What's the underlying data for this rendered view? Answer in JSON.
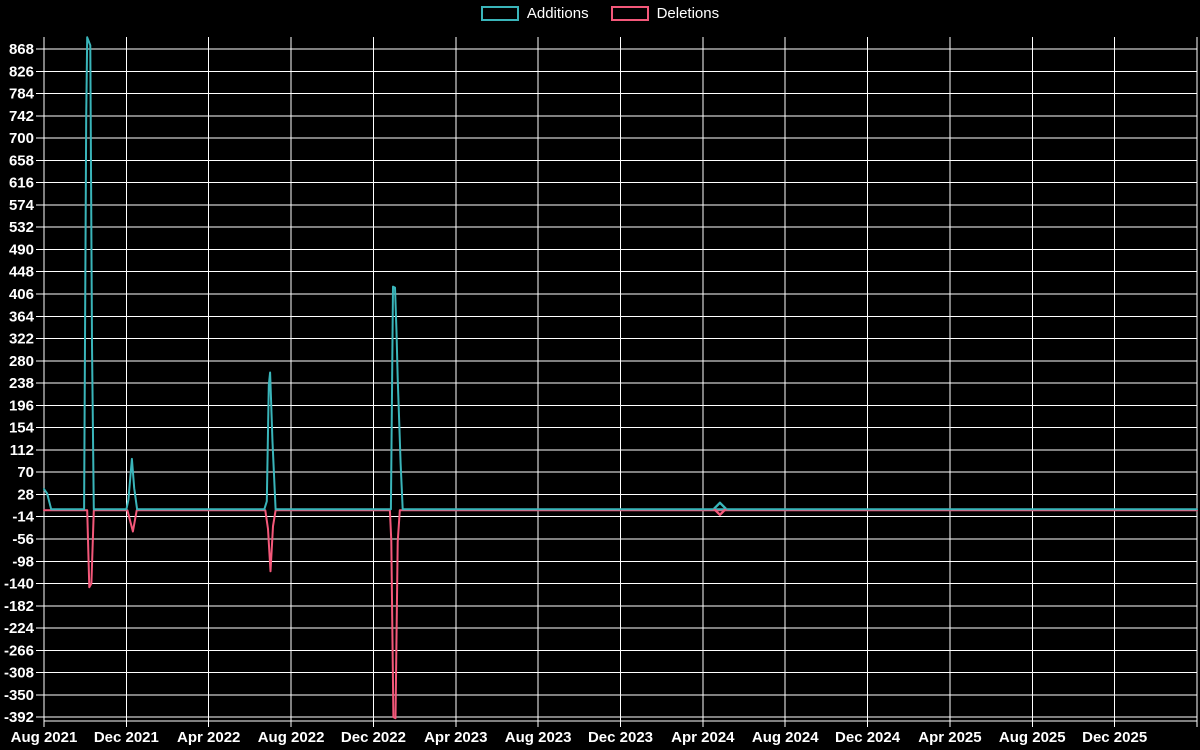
{
  "page": {
    "background": "#000000"
  },
  "legend": {
    "items": [
      {
        "label": "Additions",
        "color": "#3ab5ba"
      },
      {
        "label": "Deletions",
        "color": "#f4587a"
      }
    ]
  },
  "chart_data": {
    "type": "line",
    "title": "",
    "legend_position": "top-center",
    "grid": true,
    "colors": {
      "additions": "#3ab5ba",
      "deletions": "#f4587a",
      "grid": "#ffffff",
      "axis": "#ffffff",
      "text": "#ffffff",
      "background": "#000000"
    },
    "x_axis": {
      "start_label": "Aug 2021",
      "gridline_interval_months": 4,
      "domain_months": 56,
      "unit": "months since Aug 2021"
    },
    "x_tick_labels": [
      "Aug 2021",
      "Dec 2021",
      "Apr 2022",
      "Aug 2022",
      "Dec 2022",
      "Apr 2023",
      "Aug 2023",
      "Dec 2023",
      "Apr 2024",
      "Aug 2024",
      "Dec 2024",
      "Apr 2025",
      "Aug 2025",
      "Dec 2025"
    ],
    "y_axis": {
      "min": -392,
      "max": 868,
      "step": 42
    },
    "y_tick_labels": [
      868,
      826,
      784,
      742,
      700,
      658,
      616,
      574,
      532,
      490,
      448,
      406,
      364,
      322,
      280,
      238,
      196,
      154,
      112,
      70,
      28,
      -14,
      -56,
      -98,
      -140,
      -182,
      -224,
      -266,
      -308,
      -350,
      -392
    ],
    "series": [
      {
        "name": "Additions",
        "color": "#3ab5ba",
        "points": [
          [
            0,
            38
          ],
          [
            0.15,
            30
          ],
          [
            0.35,
            0
          ],
          [
            1.95,
            0
          ],
          [
            2.05,
            740
          ],
          [
            2.1,
            890
          ],
          [
            2.25,
            875
          ],
          [
            2.33,
            310
          ],
          [
            2.42,
            0
          ],
          [
            4.0,
            0
          ],
          [
            4.1,
            18
          ],
          [
            4.27,
            95
          ],
          [
            4.38,
            40
          ],
          [
            4.52,
            0
          ],
          [
            10.7,
            0
          ],
          [
            10.82,
            15
          ],
          [
            10.92,
            234
          ],
          [
            10.98,
            258
          ],
          [
            11.1,
            127
          ],
          [
            11.25,
            0
          ],
          [
            16.85,
            0
          ],
          [
            16.95,
            420
          ],
          [
            17.05,
            418
          ],
          [
            17.12,
            335
          ],
          [
            17.18,
            247
          ],
          [
            17.25,
            165
          ],
          [
            17.32,
            87
          ],
          [
            17.42,
            0
          ],
          [
            56,
            0
          ]
        ]
      },
      {
        "name": "Deletions",
        "color": "#f4587a",
        "points": [
          [
            0,
            0
          ],
          [
            2.1,
            0
          ],
          [
            2.2,
            -145
          ],
          [
            2.3,
            -138
          ],
          [
            2.42,
            0
          ],
          [
            4.05,
            0
          ],
          [
            4.32,
            -40
          ],
          [
            4.5,
            0
          ],
          [
            10.75,
            0
          ],
          [
            10.88,
            -35
          ],
          [
            11.0,
            -115
          ],
          [
            11.12,
            -30
          ],
          [
            11.25,
            0
          ],
          [
            16.8,
            0
          ],
          [
            16.87,
            -58
          ],
          [
            16.97,
            -390
          ],
          [
            17.07,
            -392
          ],
          [
            17.18,
            -60
          ],
          [
            17.28,
            0
          ],
          [
            56,
            0
          ]
        ]
      }
    ],
    "isolated_marker": {
      "shape": "diamond",
      "x_months": 32.83,
      "value": 0,
      "top_color": "#3ab5ba",
      "bottom_color": "#f4587a"
    }
  }
}
